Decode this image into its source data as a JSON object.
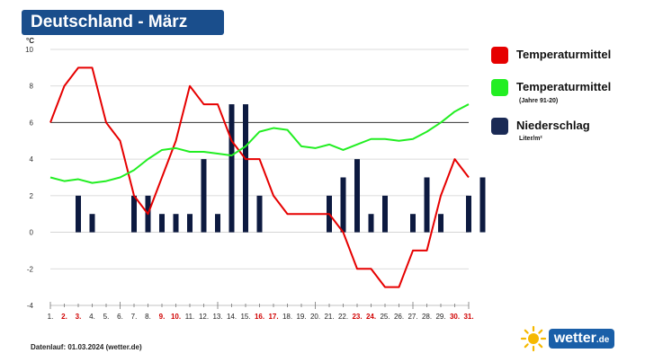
{
  "title": "Deutschland - März",
  "footer": "Datenlauf: 01.03.2024 (wetter.de)",
  "logo": {
    "name": "wetter",
    "tld": ".de",
    "icon": "sun-icon"
  },
  "legend": [
    {
      "label": "Temperaturmittel",
      "sub": "",
      "color": "#e60000"
    },
    {
      "label": "Temperaturmittel",
      "sub": "(Jahre 91-20)",
      "color": "#22ee22"
    },
    {
      "label": "Niederschlag",
      "sub": "Liter/m²",
      "color": "#1a2a55"
    }
  ],
  "chart_data": {
    "type": "line+bar",
    "title": "Deutschland - März",
    "ylabel": "°C",
    "ylim": [
      -4,
      10
    ],
    "yticks": [
      -4,
      -2,
      0,
      2,
      4,
      6,
      8,
      10
    ],
    "reference_line": 6,
    "categories": [
      "1.",
      "2.",
      "3.",
      "4.",
      "5.",
      "6.",
      "7.",
      "8.",
      "9.",
      "10.",
      "11.",
      "12.",
      "13.",
      "14.",
      "15.",
      "16.",
      "17.",
      "18.",
      "19.",
      "20.",
      "21.",
      "22.",
      "23.",
      "24.",
      "25.",
      "26.",
      "27.",
      "28.",
      "29.",
      "30.",
      "31."
    ],
    "weekend_days": [
      "2.",
      "3.",
      "9.",
      "10.",
      "16.",
      "17.",
      "23.",
      "24.",
      "30.",
      "31."
    ],
    "series": [
      {
        "name": "Temperaturmittel",
        "kind": "line",
        "color": "#e60000",
        "values": [
          6,
          8,
          9,
          9,
          6,
          5,
          2,
          1,
          3,
          5,
          8,
          7,
          7,
          5,
          4,
          4,
          2,
          1,
          1,
          1,
          1,
          0,
          -2,
          -2,
          -3,
          -3,
          -1,
          -1,
          2,
          4,
          3
        ]
      },
      {
        "name": "Temperaturmittel (Jahre 91-20)",
        "kind": "line",
        "color": "#22ee22",
        "values": [
          3,
          2.8,
          2.9,
          2.7,
          2.8,
          3,
          3.4,
          4,
          4.5,
          4.6,
          4.4,
          4.4,
          4.3,
          4.2,
          4.7,
          5.5,
          5.7,
          5.6,
          4.7,
          4.6,
          4.8,
          4.5,
          4.8,
          5.1,
          5.1,
          5,
          5.1,
          5.5,
          6,
          6.6,
          7
        ]
      },
      {
        "name": "Niederschlag",
        "kind": "bar",
        "color": "#0d1a40",
        "values": [
          0,
          2,
          1,
          0,
          0,
          2,
          2,
          1,
          1,
          1,
          4,
          1,
          7,
          7,
          2,
          0,
          0,
          0,
          0,
          2,
          3,
          4,
          1,
          2,
          0,
          1,
          3,
          1,
          0,
          2,
          3
        ]
      }
    ]
  }
}
